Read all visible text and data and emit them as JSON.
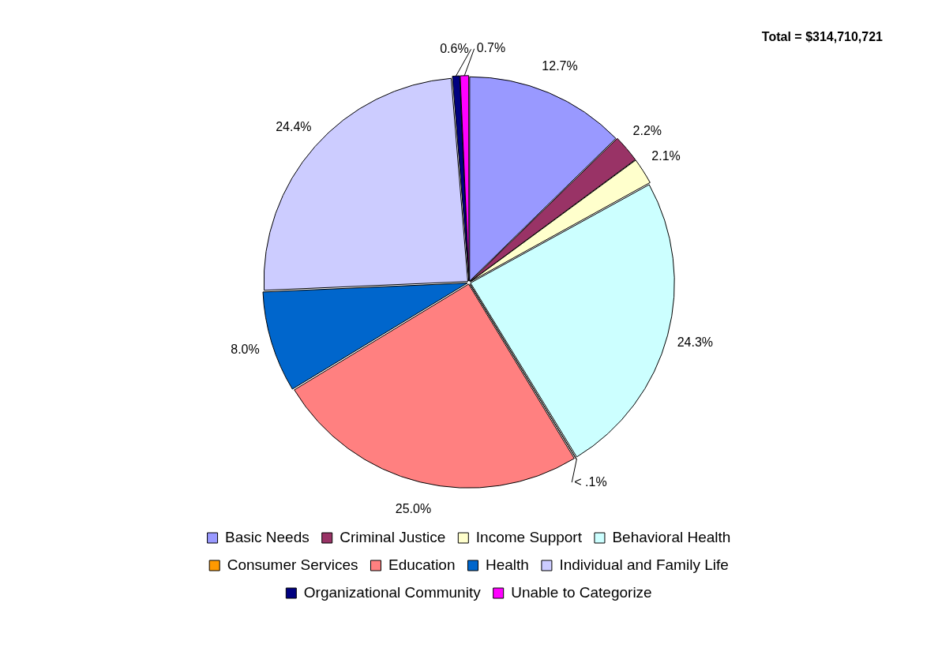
{
  "chart_data": {
    "type": "pie",
    "categories": [
      "Basic Needs",
      "Criminal Justice",
      "Income Support",
      "Behavioral Health",
      "Consumer Services",
      "Education",
      "Health",
      "Individual and Family Life",
      "Organizational Community",
      "Unable to Categorize"
    ],
    "values": [
      12.7,
      2.2,
      2.1,
      24.3,
      0.05,
      25.0,
      8.0,
      24.4,
      0.6,
      0.7
    ],
    "value_labels": [
      "12.7%",
      "2.2%",
      "2.1%",
      "24.3%",
      "< .1%",
      "25.0%",
      "8.0%",
      "24.4%",
      "0.6%",
      "0.7%"
    ],
    "colors": [
      "#9999ff",
      "#993366",
      "#ffffcc",
      "#ccffff",
      "#ff9900",
      "#ff8080",
      "#0066cc",
      "#ccccff",
      "#000080",
      "#ff00ff"
    ],
    "annotations": [
      "Total = $314,710,721"
    ],
    "legend": "bottom"
  }
}
